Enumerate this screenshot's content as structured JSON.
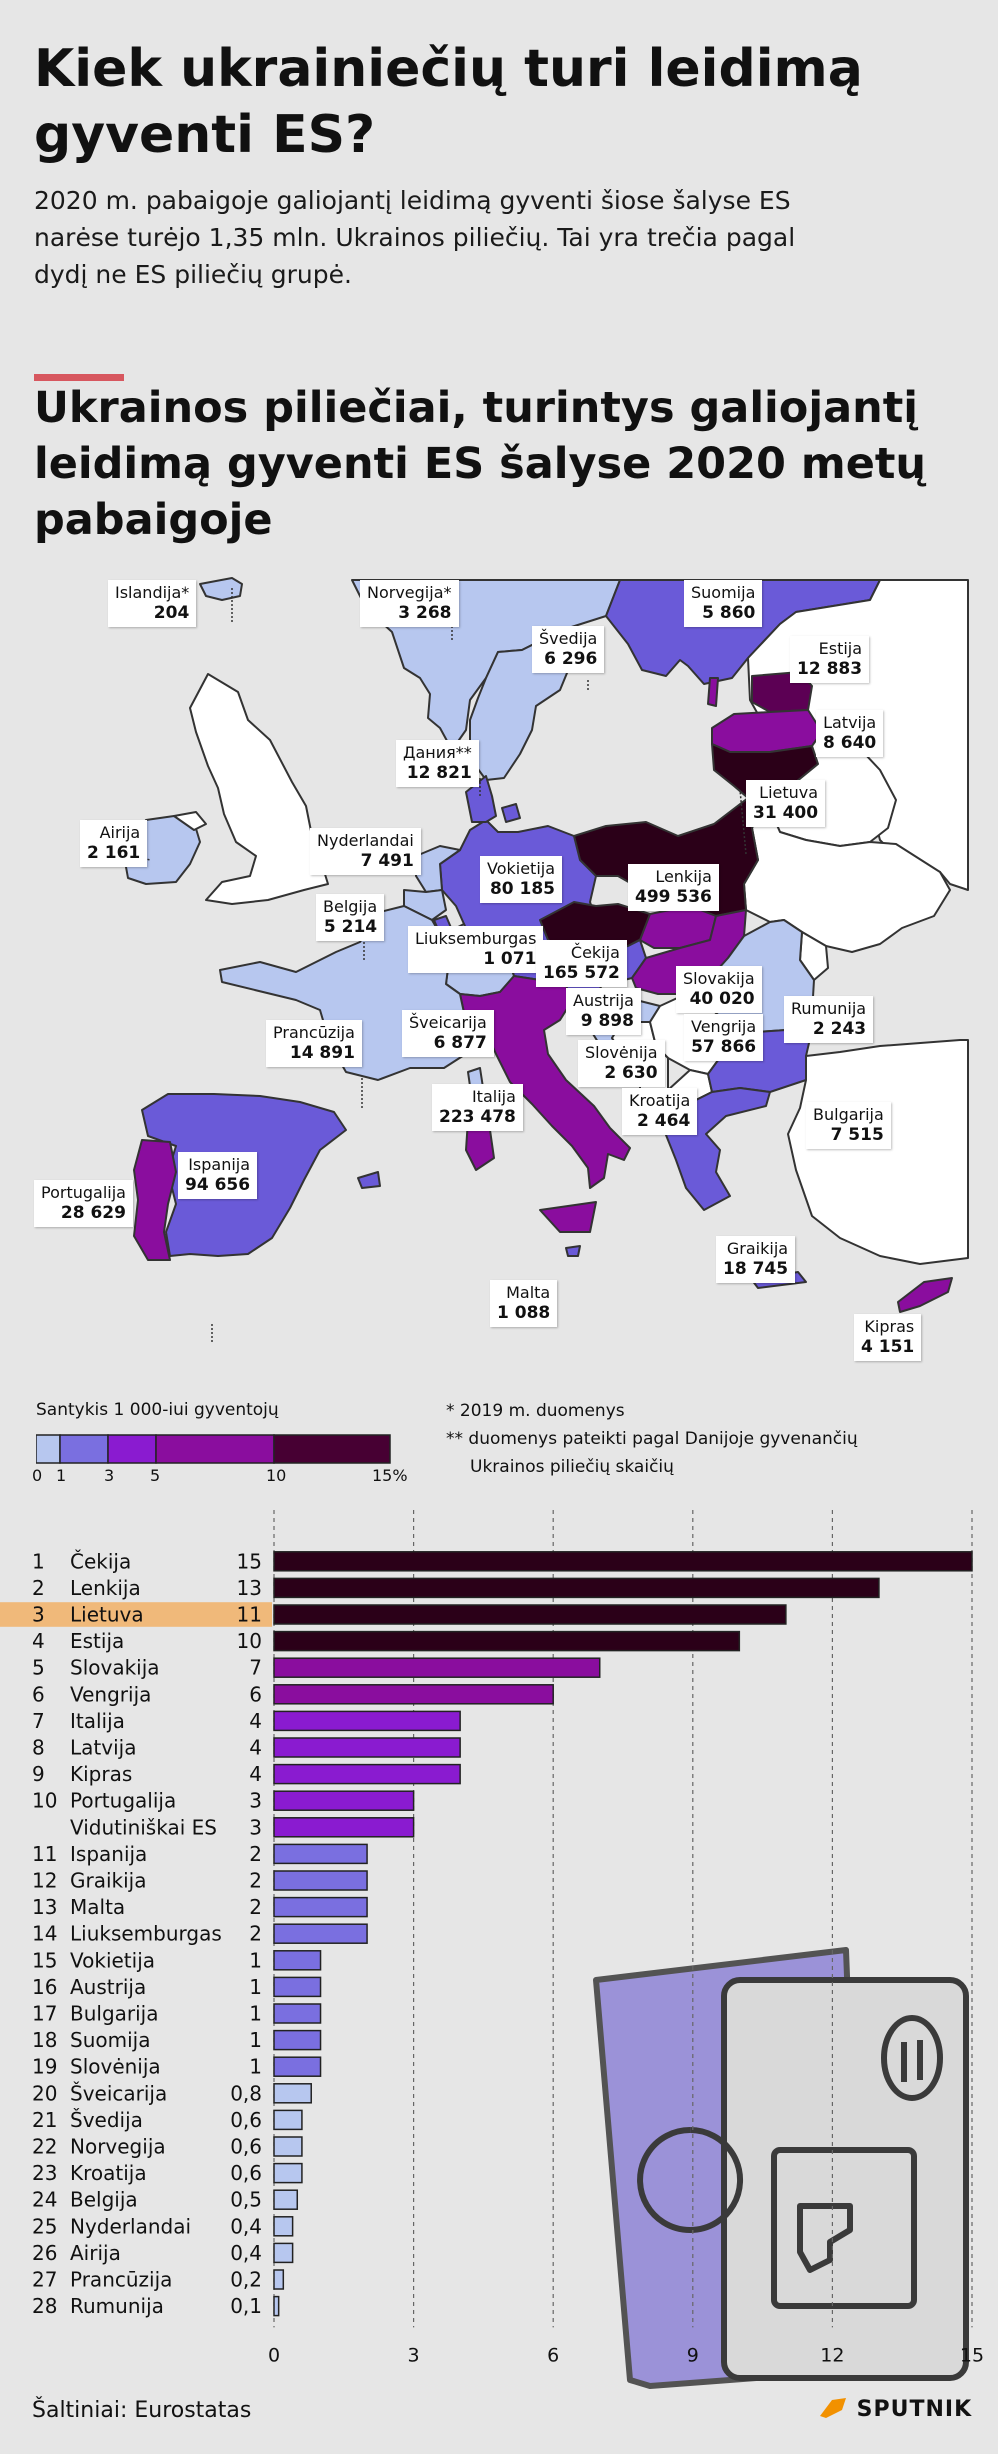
{
  "title": "Kiek ukrainiečių turi leidimą gyventi ES?",
  "intro": "2020 m. pabaigoje galiojantį leidimą gyventi šiose šalyse ES narėse turėjo 1,35 mln. Ukrainos piliečių. Tai yra trečia pagal dydį ne ES piliečių grupė.",
  "map_title": "Ukrainos piliečiai, turintys galiojantį leidimą gyventi ES šalyse 2020 metų pabaigoje",
  "map_labels": [
    {
      "name": "Islandija*",
      "value": "204"
    },
    {
      "name": "Norvegija*",
      "value": "3 268"
    },
    {
      "name": "Suomija",
      "value": "5 860"
    },
    {
      "name": "Švedija",
      "value": "6 296"
    },
    {
      "name": "Estija",
      "value": "12 883"
    },
    {
      "name": "Latvija",
      "value": "8 640"
    },
    {
      "name": "Дания**",
      "value": "12 821"
    },
    {
      "name": "Lietuva",
      "value": "31 400"
    },
    {
      "name": "Airija",
      "value": "2 161"
    },
    {
      "name": "Nyderlandai",
      "value": "7 491"
    },
    {
      "name": "Vokietija",
      "value": "80 185"
    },
    {
      "name": "Lenkija",
      "value": "499 536"
    },
    {
      "name": "Belgija",
      "value": "5 214"
    },
    {
      "name": "Liuksemburgas",
      "value": "1 071"
    },
    {
      "name": "Čekija",
      "value": "165 572"
    },
    {
      "name": "Slovakija",
      "value": "40 020"
    },
    {
      "name": "Austrija",
      "value": "9 898"
    },
    {
      "name": "Rumunija",
      "value": "2 243"
    },
    {
      "name": "Prancūzija",
      "value": "14 891"
    },
    {
      "name": "Šveicarija",
      "value": "6 877"
    },
    {
      "name": "Vengrija",
      "value": "57 866"
    },
    {
      "name": "Slovėnija",
      "value": "2 630"
    },
    {
      "name": "Italija",
      "value": "223 478"
    },
    {
      "name": "Kroatija",
      "value": "2 464"
    },
    {
      "name": "Bulgarija",
      "value": "7 515"
    },
    {
      "name": "Ispanija",
      "value": "94 656"
    },
    {
      "name": "Portugalija",
      "value": "28 629"
    },
    {
      "name": "Graikija",
      "value": "18 745"
    },
    {
      "name": "Malta",
      "value": "1 088"
    },
    {
      "name": "Kipras",
      "value": "4 151"
    }
  ],
  "legend": {
    "title": "Santykis 1 000-iui gyventojų",
    "ticks": [
      "0",
      "1",
      "3",
      "5",
      "10",
      "15%"
    ],
    "colors": [
      "#b7c7ef",
      "#7a6fe0",
      "#8a1bd0",
      "#8a0d9e",
      "#470033",
      "#2b0018"
    ]
  },
  "notes": [
    "* 2019 m. duomenys",
    "** duomenys pateikti pagal Danijoje gyvenančių",
    "Ukrainos piliečių skaičių"
  ],
  "chart_data": {
    "type": "bar",
    "orientation": "horizontal",
    "ranks": [
      "1",
      "2",
      "3",
      "4",
      "5",
      "6",
      "7",
      "8",
      "9",
      "10",
      "",
      "11",
      "12",
      "13",
      "14",
      "15",
      "16",
      "17",
      "18",
      "19",
      "20",
      "21",
      "22",
      "23",
      "24",
      "25",
      "26",
      "27",
      "28"
    ],
    "categories": [
      "Čekija",
      "Lenkija",
      "Lietuva",
      "Estija",
      "Slovakija",
      "Vengrija",
      "Italija",
      "Latvija",
      "Kipras",
      "Portugalija",
      "Vidutiniškai ES",
      "Ispanija",
      "Graikija",
      "Malta",
      "Liuksemburgas",
      "Vokietija",
      "Austrija",
      "Bulgarija",
      "Suomija",
      "Slovėnija",
      "Šveicarija",
      "Švedija",
      "Norvegija",
      "Kroatija",
      "Belgija",
      "Nyderlandai",
      "Airija",
      "Prancūzija",
      "Rumunija"
    ],
    "value_labels": [
      "15",
      "13",
      "11",
      "10",
      "7",
      "6",
      "4",
      "4",
      "4",
      "3",
      "3",
      "2",
      "2",
      "2",
      "2",
      "1",
      "1",
      "1",
      "1",
      "1",
      "0,8",
      "0,6",
      "0,6",
      "0,6",
      "0,5",
      "0,4",
      "0,4",
      "0,2",
      "0,1"
    ],
    "values": [
      15,
      13,
      11,
      10,
      7,
      6,
      4,
      4,
      4,
      3,
      3,
      2,
      2,
      2,
      2,
      1,
      1,
      1,
      1,
      1,
      0.8,
      0.6,
      0.6,
      0.6,
      0.5,
      0.4,
      0.4,
      0.2,
      0.1
    ],
    "highlight": "Lietuva",
    "highlight_color": "#f0b97a",
    "xticks": [
      "0",
      "3",
      "6",
      "9",
      "12",
      "15"
    ],
    "xlim": [
      0,
      15
    ]
  },
  "source": "Šaltiniai: Eurostatas",
  "brand": "SPUTNIK",
  "colors": {
    "accent": "#d7575f",
    "background": "#e6e6e6",
    "logo": "#f29100"
  }
}
